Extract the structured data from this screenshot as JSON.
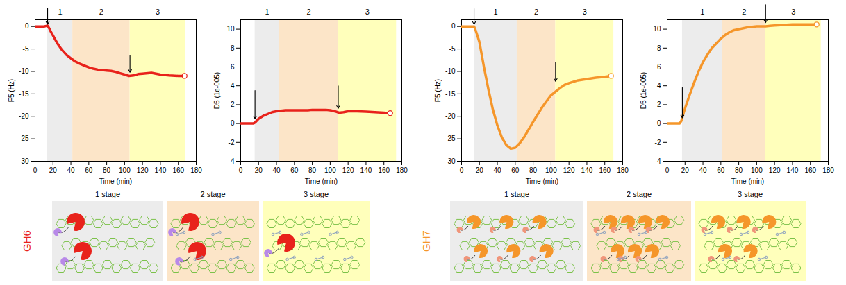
{
  "chart_data": [
    {
      "type": "line",
      "color": "#e8221b",
      "marker": "circle",
      "x_label": "Time (min)",
      "y_label": "F5 (Hz)",
      "x": [
        0,
        5,
        10,
        14,
        16,
        18,
        20,
        25,
        30,
        35,
        40,
        45,
        50,
        55,
        60,
        65,
        70,
        75,
        80,
        85,
        90,
        95,
        100,
        105,
        110,
        115,
        120,
        130,
        140,
        150,
        160,
        167
      ],
      "values": [
        0,
        0,
        0,
        0.2,
        -0.5,
        -1.3,
        -2,
        -3.8,
        -5.2,
        -6.3,
        -7.1,
        -7.8,
        -8.3,
        -8.7,
        -9.1,
        -9.4,
        -9.6,
        -9.7,
        -9.8,
        -9.9,
        -10.1,
        -10.4,
        -10.7,
        -11,
        -10.9,
        -10.6,
        -10.5,
        -10.3,
        -10.7,
        -10.9,
        -11,
        -11
      ],
      "xlim": [
        0,
        180
      ],
      "xticks": [
        0,
        20,
        40,
        60,
        80,
        100,
        120,
        140,
        160,
        180
      ],
      "ylim": [
        -30,
        1.5
      ],
      "yticks": [
        -30,
        -25,
        -20,
        -15,
        -10,
        -5,
        0
      ],
      "regions": [
        {
          "label": "1",
          "start": 14,
          "end": 42,
          "color": "#ececec"
        },
        {
          "label": "2",
          "start": 42,
          "end": 106,
          "color": "#fce5c8"
        },
        {
          "label": "3",
          "start": 106,
          "end": 168,
          "color": "#ffffbb"
        }
      ],
      "arrows": [
        {
          "x": 14,
          "from": 4,
          "to": 0.5
        },
        {
          "x": 106,
          "from": -6.5,
          "to": -10.2
        }
      ]
    },
    {
      "type": "line",
      "color": "#e8221b",
      "marker": "circle",
      "x_label": "Time (min)",
      "y_label": "D5 (1e-005)",
      "x": [
        0,
        5,
        10,
        14,
        16,
        18,
        20,
        25,
        30,
        35,
        40,
        45,
        50,
        55,
        60,
        65,
        70,
        75,
        80,
        85,
        90,
        95,
        100,
        105,
        110,
        115,
        120,
        130,
        140,
        150,
        160,
        167
      ],
      "values": [
        0,
        0,
        0,
        0,
        0.1,
        0.3,
        0.5,
        0.8,
        1.0,
        1.2,
        1.3,
        1.35,
        1.4,
        1.4,
        1.4,
        1.4,
        1.4,
        1.4,
        1.45,
        1.45,
        1.45,
        1.45,
        1.4,
        1.3,
        1.15,
        1.2,
        1.3,
        1.3,
        1.25,
        1.2,
        1.15,
        1.1
      ],
      "xlim": [
        0,
        180
      ],
      "xticks": [
        0,
        20,
        40,
        60,
        80,
        100,
        120,
        140,
        160,
        180
      ],
      "ylim": [
        -4,
        11
      ],
      "yticks": [
        -4,
        -2,
        0,
        2,
        4,
        6,
        8,
        10
      ],
      "regions": [
        {
          "label": "1",
          "start": 16,
          "end": 43,
          "color": "#ececec"
        },
        {
          "label": "2",
          "start": 43,
          "end": 109,
          "color": "#fce5c8"
        },
        {
          "label": "3",
          "start": 109,
          "end": 174,
          "color": "#ffffbb"
        }
      ],
      "arrows": [
        {
          "x": 16,
          "from": 3.5,
          "to": 0.5
        },
        {
          "x": 109,
          "from": 4,
          "to": 1.6
        }
      ]
    },
    {
      "type": "line",
      "color": "#f5962a",
      "marker": "circle",
      "x_label": "Time (min)",
      "y_label": "F5 (Hz)",
      "x": [
        0,
        5,
        10,
        14,
        16,
        18,
        20,
        25,
        30,
        35,
        40,
        45,
        50,
        55,
        60,
        65,
        70,
        75,
        80,
        85,
        90,
        95,
        100,
        105,
        110,
        115,
        120,
        130,
        140,
        150,
        160,
        167
      ],
      "values": [
        0,
        0,
        0,
        0,
        -1,
        -2.2,
        -3.5,
        -9,
        -14,
        -18.5,
        -22,
        -24.7,
        -26.4,
        -27.2,
        -27,
        -26,
        -24.6,
        -22.9,
        -21.2,
        -19.6,
        -18,
        -16.6,
        -15.3,
        -14.5,
        -13.7,
        -13,
        -12.6,
        -12,
        -11.7,
        -11.4,
        -11.2,
        -11
      ],
      "xlim": [
        0,
        180
      ],
      "xticks": [
        0,
        20,
        40,
        60,
        80,
        100,
        120,
        140,
        160,
        180
      ],
      "ylim": [
        -30,
        1.5
      ],
      "yticks": [
        -30,
        -25,
        -20,
        -15,
        -10,
        -5,
        0
      ],
      "regions": [
        {
          "label": "1",
          "start": 14,
          "end": 62,
          "color": "#ececec"
        },
        {
          "label": "2",
          "start": 62,
          "end": 105,
          "color": "#fce5c8"
        },
        {
          "label": "3",
          "start": 105,
          "end": 170,
          "color": "#ffffbb"
        }
      ],
      "arrows": [
        {
          "x": 14,
          "from": 4,
          "to": 0.5
        },
        {
          "x": 105,
          "from": -8,
          "to": -12.2
        }
      ]
    },
    {
      "type": "line",
      "color": "#f5962a",
      "marker": "circle",
      "x_label": "Time (min)",
      "y_label": "D5 (1e-005)",
      "x": [
        0,
        5,
        10,
        14,
        16,
        18,
        20,
        25,
        30,
        35,
        40,
        45,
        50,
        55,
        60,
        65,
        70,
        75,
        80,
        85,
        90,
        95,
        100,
        105,
        110,
        115,
        120,
        130,
        140,
        150,
        160,
        167
      ],
      "values": [
        0,
        0,
        0,
        0,
        0.3,
        1.0,
        1.6,
        3.0,
        4.3,
        5.5,
        6.5,
        7.3,
        8.0,
        8.5,
        9.0,
        9.4,
        9.7,
        9.9,
        10.0,
        10.1,
        10.2,
        10.25,
        10.3,
        10.3,
        10.3,
        10.35,
        10.4,
        10.45,
        10.5,
        10.5,
        10.5,
        10.5
      ],
      "xlim": [
        0,
        180
      ],
      "xticks": [
        0,
        20,
        40,
        60,
        80,
        100,
        120,
        140,
        160,
        180
      ],
      "ylim": [
        -4,
        11
      ],
      "yticks": [
        -4,
        -2,
        0,
        2,
        4,
        6,
        8,
        10
      ],
      "regions": [
        {
          "label": "1",
          "start": 17,
          "end": 62,
          "color": "#ececec"
        },
        {
          "label": "2",
          "start": 62,
          "end": 110,
          "color": "#fce5c8"
        },
        {
          "label": "3",
          "start": 110,
          "end": 172,
          "color": "#ffffbb"
        }
      ],
      "arrows": [
        {
          "x": 17,
          "from": 3.8,
          "to": 0.6
        },
        {
          "x": 110,
          "from": 12.6,
          "to": 10.7
        }
      ]
    }
  ],
  "diagram": {
    "groups": [
      {
        "name": "GH6",
        "color": "#e8221b",
        "domain_color": "#b889e8",
        "stages": [
          {
            "label": "1 stage",
            "color": "#ececec"
          },
          {
            "label": "2 stage",
            "color": "#fce5c8"
          },
          {
            "label": "3 stage",
            "color": "#ffffbb"
          }
        ]
      },
      {
        "name": "GH7",
        "color": "#f5962a",
        "domain_color": "#f0957a",
        "stages": [
          {
            "label": "1 stage",
            "color": "#ececec"
          },
          {
            "label": "2 stage",
            "color": "#fce5c8"
          },
          {
            "label": "3 stage",
            "color": "#ffffbb"
          }
        ]
      }
    ]
  }
}
